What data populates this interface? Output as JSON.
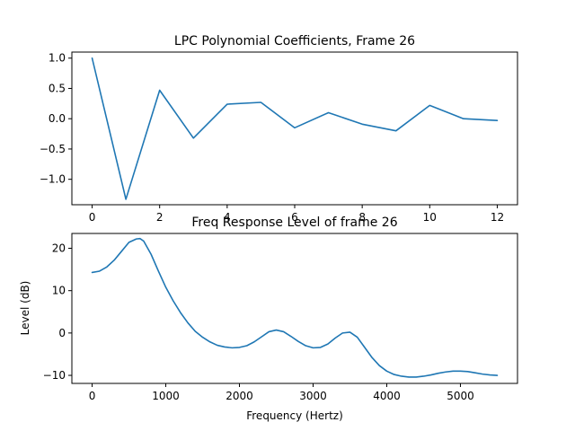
{
  "colors": {
    "line": "#1f77b4",
    "axes": "#000000",
    "background": "#ffffff"
  },
  "chart_data": [
    {
      "type": "line",
      "title": "LPC Polynomial Coefficients, Frame 26",
      "xlabel": "",
      "ylabel": "",
      "xlim": [
        -0.6,
        12.6
      ],
      "ylim": [
        -1.42,
        1.1
      ],
      "xticks": [
        0,
        2,
        4,
        6,
        8,
        10,
        12
      ],
      "yticks": [
        1.0,
        0.5,
        0.0,
        -0.5,
        -1.0
      ],
      "ytick_labels": [
        "1.0",
        "0.5",
        "0.0",
        "−0.5",
        "−1.0"
      ],
      "grid": false,
      "series": [
        {
          "x": [
            0,
            1,
            2,
            3,
            4,
            5,
            6,
            7,
            8,
            9,
            10,
            11,
            12
          ],
          "values": [
            1.0,
            -1.33,
            0.47,
            -0.32,
            0.24,
            0.27,
            -0.15,
            0.1,
            -0.09,
            -0.2,
            0.22,
            0.0,
            -0.03
          ]
        }
      ]
    },
    {
      "type": "line",
      "title": "Freq Response Level of frame 26",
      "xlabel": "Frequency (Hertz)",
      "ylabel": "Level (dB)",
      "xlim": [
        -275,
        5775
      ],
      "ylim": [
        -11.9,
        23.5
      ],
      "xticks": [
        0,
        1000,
        2000,
        3000,
        4000,
        5000
      ],
      "yticks": [
        20,
        10,
        0,
        -10
      ],
      "ytick_labels": [
        "20",
        "10",
        "0",
        "−10"
      ],
      "grid": false,
      "series": [
        {
          "x": [
            0,
            100,
            200,
            300,
            400,
            500,
            600,
            650,
            700,
            800,
            900,
            1000,
            1100,
            1200,
            1300,
            1400,
            1500,
            1600,
            1700,
            1800,
            1900,
            2000,
            2100,
            2200,
            2300,
            2400,
            2500,
            2600,
            2700,
            2800,
            2900,
            3000,
            3100,
            3200,
            3300,
            3400,
            3500,
            3600,
            3700,
            3800,
            3900,
            4000,
            4100,
            4200,
            4300,
            4400,
            4500,
            4600,
            4700,
            4800,
            4900,
            5000,
            5100,
            5200,
            5300,
            5400,
            5500
          ],
          "values": [
            14.3,
            14.6,
            15.6,
            17.2,
            19.3,
            21.4,
            22.2,
            22.3,
            21.7,
            18.6,
            14.6,
            10.8,
            7.6,
            4.8,
            2.4,
            0.4,
            -1.0,
            -2.1,
            -2.9,
            -3.3,
            -3.5,
            -3.4,
            -3.0,
            -2.1,
            -0.9,
            0.3,
            0.7,
            0.3,
            -0.8,
            -2.0,
            -3.0,
            -3.5,
            -3.4,
            -2.6,
            -1.2,
            0.0,
            0.2,
            -1.0,
            -3.4,
            -5.8,
            -7.7,
            -9.0,
            -9.8,
            -10.2,
            -10.4,
            -10.4,
            -10.2,
            -9.9,
            -9.5,
            -9.2,
            -9.0,
            -9.0,
            -9.1,
            -9.4,
            -9.7,
            -9.9,
            -10.0
          ]
        }
      ]
    }
  ]
}
